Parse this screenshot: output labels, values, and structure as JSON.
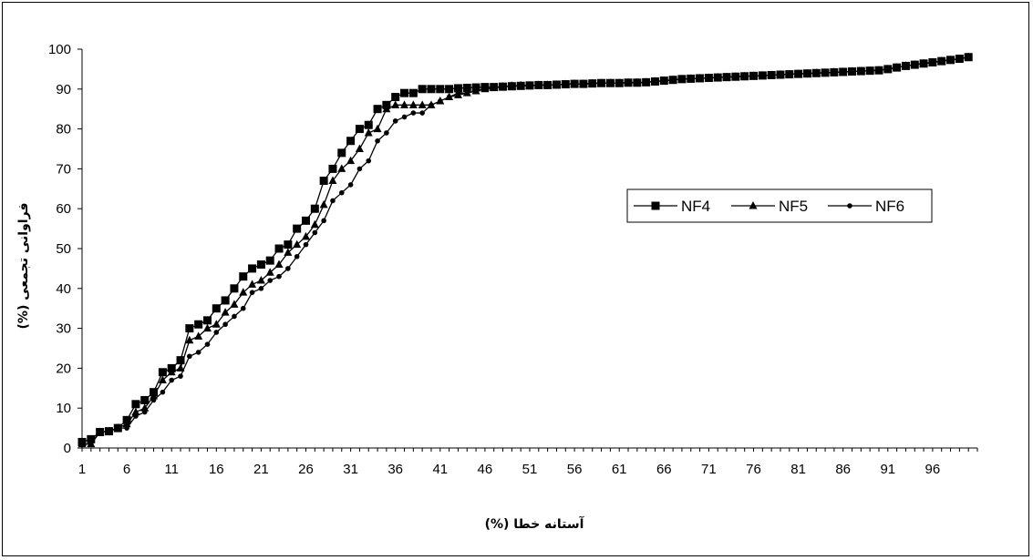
{
  "chart_data": {
    "type": "line",
    "xlabel": "آستانه خطا  (%)",
    "ylabel": "فراوانی تجمعی  (%)",
    "x_tick_labels": [
      "1",
      "6",
      "11",
      "16",
      "21",
      "26",
      "31",
      "36",
      "41",
      "46",
      "51",
      "56",
      "61",
      "66",
      "71",
      "76",
      "81",
      "86",
      "91",
      "96"
    ],
    "y_tick_labels": [
      "0",
      "10",
      "20",
      "30",
      "40",
      "50",
      "60",
      "70",
      "80",
      "90",
      "100"
    ],
    "xlim": [
      1,
      101
    ],
    "ylim": [
      0,
      100
    ],
    "grid": false,
    "legend_position": "right-middle",
    "x": [
      1,
      2,
      3,
      4,
      5,
      6,
      7,
      8,
      9,
      10,
      11,
      12,
      13,
      14,
      15,
      16,
      17,
      18,
      19,
      20,
      21,
      22,
      23,
      24,
      25,
      26,
      27,
      28,
      29,
      30,
      31,
      32,
      33,
      34,
      35,
      36,
      37,
      38,
      39,
      40,
      41,
      42,
      43,
      44,
      45,
      46,
      47,
      48,
      49,
      50,
      51,
      52,
      53,
      54,
      55,
      56,
      57,
      58,
      59,
      60,
      61,
      62,
      63,
      64,
      65,
      66,
      67,
      68,
      69,
      70,
      71,
      72,
      73,
      74,
      75,
      76,
      77,
      78,
      79,
      80,
      81,
      82,
      83,
      84,
      85,
      86,
      87,
      88,
      89,
      90,
      91,
      92,
      93,
      94,
      95,
      96,
      97,
      98,
      99,
      100
    ],
    "series": [
      {
        "name": "NF4",
        "marker": "square",
        "color": "#000000",
        "values": [
          1.5,
          2.2,
          4,
          4.2,
          5,
          7,
          11,
          12,
          14,
          19,
          20,
          22,
          30,
          31,
          32,
          35,
          37,
          40,
          43,
          45,
          46,
          47,
          50,
          51,
          55,
          57,
          60,
          67,
          70,
          74,
          77,
          80,
          81,
          85,
          86,
          88,
          89,
          89,
          90,
          90,
          90,
          90,
          90.2,
          90.3,
          90.4,
          90.5,
          90.5,
          90.6,
          90.7,
          90.8,
          90.9,
          91,
          91,
          91.1,
          91.2,
          91.3,
          91.3,
          91.4,
          91.5,
          91.5,
          91.5,
          91.6,
          91.6,
          91.7,
          91.9,
          92.1,
          92.3,
          92.5,
          92.6,
          92.7,
          92.8,
          92.9,
          93,
          93.1,
          93.2,
          93.3,
          93.4,
          93.5,
          93.6,
          93.7,
          93.8,
          93.9,
          94,
          94.1,
          94.2,
          94.3,
          94.4,
          94.5,
          94.6,
          94.7,
          95,
          95.4,
          95.8,
          96.1,
          96.4,
          96.7,
          97,
          97.3,
          97.6,
          98
        ]
      },
      {
        "name": "NF5",
        "marker": "triangle",
        "color": "#000000",
        "values": [
          1,
          1,
          4,
          4.2,
          5,
          6,
          9,
          10,
          13,
          17,
          19,
          20,
          27,
          28,
          30,
          31,
          34,
          36,
          39,
          41,
          42,
          44,
          46,
          49,
          51,
          53,
          56,
          61,
          67,
          70,
          72,
          75,
          79,
          80,
          85,
          86,
          86,
          86,
          86,
          86,
          87,
          88,
          88.5,
          89,
          89.5,
          90,
          90.3,
          90.6,
          90.8,
          90.9,
          90.9,
          91,
          91,
          91.1,
          91.2,
          91.3,
          91.3,
          91.4,
          91.5,
          91.5,
          91.5,
          91.6,
          91.6,
          91.7,
          91.9,
          92.1,
          92.3,
          92.5,
          92.6,
          92.7,
          92.8,
          92.9,
          93,
          93.1,
          93.2,
          93.3,
          93.4,
          93.5,
          93.6,
          93.7,
          93.8,
          93.9,
          94,
          94.1,
          94.2,
          94.3,
          94.4,
          94.5,
          94.6,
          94.7,
          95,
          95.4,
          95.8,
          96.1,
          96.4,
          96.7,
          97,
          97.3,
          97.6,
          98
        ]
      },
      {
        "name": "NF6",
        "marker": "circle",
        "color": "#000000",
        "values": [
          1,
          1,
          4,
          4.2,
          5,
          5,
          8,
          9,
          12,
          14,
          17,
          18,
          23,
          24,
          26,
          29,
          31,
          33,
          35,
          39,
          40,
          42,
          43,
          45,
          48,
          51,
          54,
          57,
          62,
          64,
          66,
          70,
          72,
          77,
          79,
          82,
          83,
          84,
          84,
          86,
          87,
          88,
          89,
          89,
          89.5,
          90,
          90.3,
          90.6,
          90.8,
          90.9,
          90.9,
          91,
          91,
          91.1,
          91.2,
          91.3,
          91.3,
          91.4,
          91.5,
          91.5,
          91.5,
          91.6,
          91.6,
          91.7,
          91.9,
          92.1,
          92.3,
          92.5,
          92.6,
          92.7,
          92.8,
          92.9,
          93,
          93.1,
          93.2,
          93.3,
          93.4,
          93.5,
          93.6,
          93.7,
          93.8,
          93.9,
          94,
          94.1,
          94.2,
          94.3,
          94.4,
          94.5,
          94.6,
          94.7,
          95,
          95.4,
          95.8,
          96.1,
          96.4,
          96.7,
          97,
          97.3,
          97.6,
          98
        ]
      }
    ]
  }
}
